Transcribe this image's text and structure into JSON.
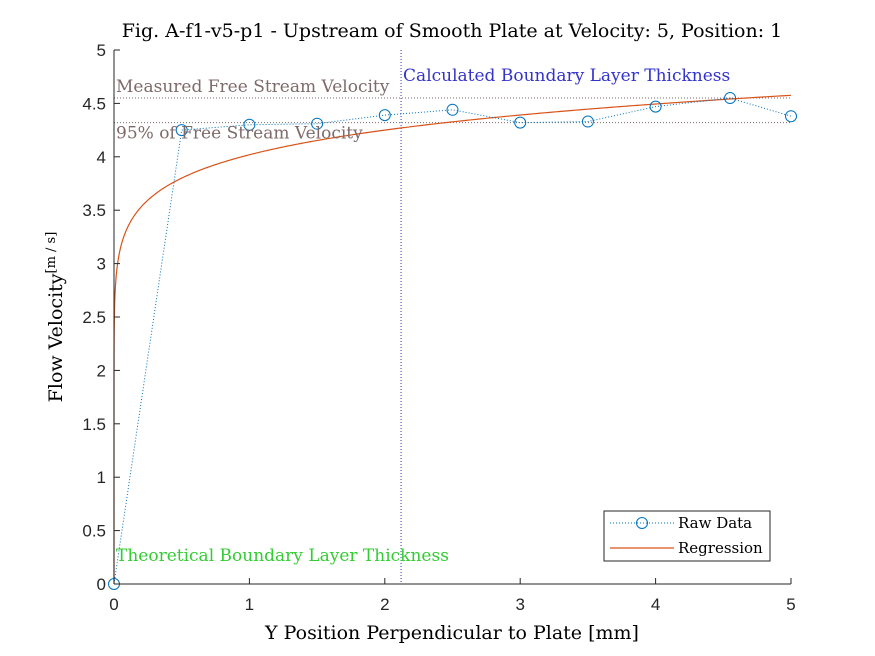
{
  "chart_data": {
    "type": "line",
    "title": "Fig. A-f1-v5-p1 - Upstream of Smooth Plate at Velocity: 5, Position: 1",
    "xlabel": "Y Position Perpendicular to Plate [mm]",
    "ylabel_main": "Flow Velocity",
    "ylabel_unit": "[m / s]",
    "xlim": [
      0,
      5
    ],
    "ylim": [
      0,
      5
    ],
    "xticks": [
      0,
      1,
      2,
      3,
      4,
      5
    ],
    "xtick_labels": [
      "0",
      "1",
      "2",
      "3",
      "4",
      "5"
    ],
    "yticks": [
      0,
      0.5,
      1,
      1.5,
      2,
      2.5,
      3,
      3.5,
      4,
      4.5,
      5
    ],
    "ytick_labels": [
      "0",
      "0.5",
      "1",
      "1.5",
      "2",
      "2.5",
      "3",
      "3.5",
      "4",
      "4.5",
      "5"
    ],
    "grid": false,
    "legend_position": "bottom-right",
    "series": [
      {
        "name": "Raw Data",
        "style": "dotted-circle",
        "color": "#0072BD",
        "x": [
          0,
          0.5,
          1.0,
          1.5,
          2.0,
          2.5,
          3.0,
          3.5,
          4.0,
          4.55,
          5.0
        ],
        "y": [
          0.0,
          4.25,
          4.3,
          4.31,
          4.39,
          4.44,
          4.32,
          4.33,
          4.47,
          4.55,
          4.38
        ]
      },
      {
        "name": "Regression",
        "style": "solid",
        "color": "#D95319",
        "model": "power",
        "coefficients": {
          "a": 4.25,
          "b": 0.0806,
          "x_ref": 2.0
        },
        "x_range": [
          0,
          5
        ]
      }
    ],
    "reference_lines": [
      {
        "label": "Measured Free Stream Velocity",
        "orientation": "horizontal",
        "value": 4.55,
        "color": "#7E6A6A",
        "style": "dotted"
      },
      {
        "label": "95% of Free Stream Velocity",
        "orientation": "horizontal",
        "value": 4.32,
        "color": "#7E6A6A",
        "style": "dotted"
      },
      {
        "label": "Calculated Boundary Layer Thickness",
        "orientation": "vertical",
        "value": 2.12,
        "color": "#3333CC",
        "style": "dotted"
      },
      {
        "label": "Theoretical Boundary Layer Thickness",
        "orientation": "vertical",
        "value": 0.0,
        "color": "#33CC33",
        "style": "dotted"
      }
    ]
  }
}
